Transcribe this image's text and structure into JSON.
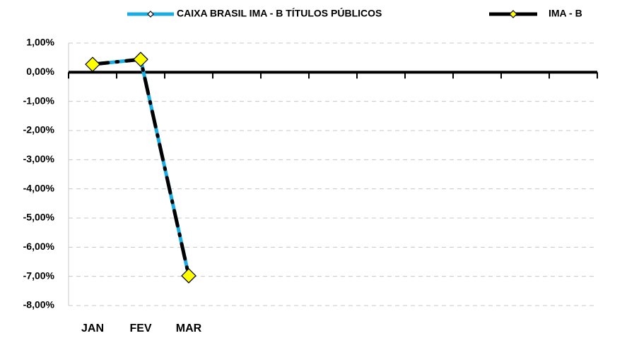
{
  "chart_data": {
    "type": "line",
    "categories": [
      "JAN",
      "FEV",
      "MAR",
      null,
      null,
      null,
      null,
      null,
      null,
      null,
      null
    ],
    "series": [
      {
        "name": "CAIXA BRASIL IMA - B TÍTULOS PÚBLICOS",
        "color": "#1aade4",
        "values": [
          0.27,
          0.44,
          -6.97,
          null,
          null,
          null,
          null,
          null,
          null,
          null,
          null
        ]
      },
      {
        "name": "IMA - B",
        "color": "#000000",
        "marker_color": "#ffff00",
        "values": [
          0.27,
          0.44,
          -6.98,
          null,
          null,
          null,
          null,
          null,
          null,
          null,
          null
        ]
      }
    ],
    "ylim": [
      -8,
      1
    ],
    "yticks": [
      {
        "value": 1,
        "label": "1,00%"
      },
      {
        "value": 0,
        "label": "0,00%"
      },
      {
        "value": -1,
        "label": "-1,00%"
      },
      {
        "value": -2,
        "label": "-2,00%"
      },
      {
        "value": -3,
        "label": "-3,00%"
      },
      {
        "value": -4,
        "label": "-4,00%"
      },
      {
        "value": -5,
        "label": "-5,00%"
      },
      {
        "value": -6,
        "label": "-6,00%"
      },
      {
        "value": -7,
        "label": "-7,00%"
      },
      {
        "value": -8,
        "label": "-8,00%"
      }
    ],
    "grid": true,
    "legend": "top"
  }
}
